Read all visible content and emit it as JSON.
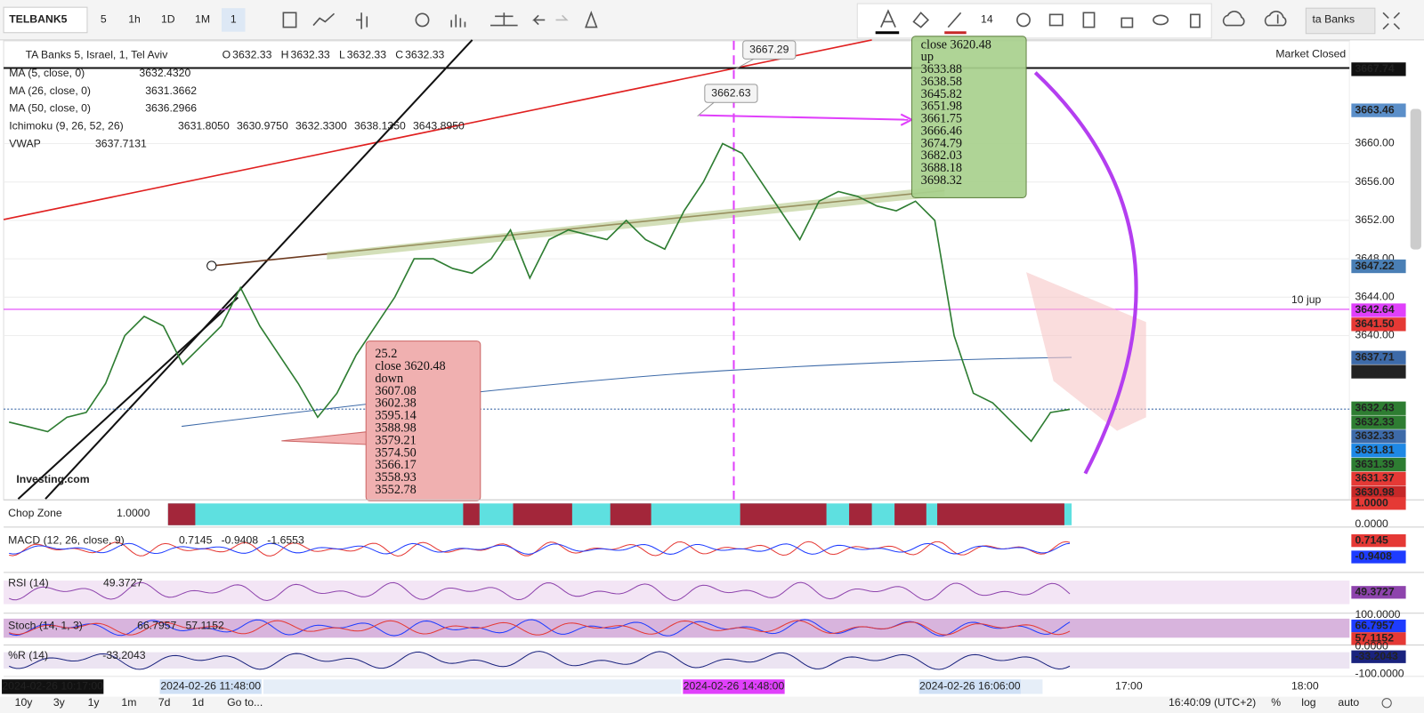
{
  "toolbar": {
    "symbol": "TELBANK5",
    "intervals": [
      "5",
      "1h",
      "1D",
      "1M",
      "1"
    ],
    "font_size": "14",
    "layout_name": "ta Banks"
  },
  "legend": {
    "title": "TA Banks 5, Israel, 1, Tel Aviv",
    "ohlc": [
      {
        "key": "O",
        "value": "3632.33"
      },
      {
        "key": "H",
        "value": "3632.33"
      },
      {
        "key": "L",
        "value": "3632.33"
      },
      {
        "key": "C",
        "value": "3632.33"
      }
    ],
    "status": "Market Closed",
    "indicators": [
      {
        "name": "MA (5, close, 0)",
        "values": [
          "3632.4320"
        ],
        "colors": [
          "#2e7d32"
        ]
      },
      {
        "name": "MA (26, close, 0)",
        "values": [
          "3631.3662"
        ],
        "colors": [
          "#d32f2f"
        ]
      },
      {
        "name": "MA (50, close, 0)",
        "values": [
          "3636.2966"
        ],
        "colors": [
          "#333333"
        ]
      },
      {
        "name": "Ichimoku (9, 26, 52, 26)",
        "values": [
          "3631.8050",
          "3630.9750",
          "3632.3300",
          "3638.1350",
          "3643.8950"
        ],
        "colors": [
          "#1e88e5",
          "#b71c1c",
          "#2e7d32",
          "#2e7d32",
          "#e53935"
        ]
      },
      {
        "name": "VWAP",
        "values": [
          "3637.7131"
        ],
        "colors": [
          "#1a3a8a"
        ]
      }
    ]
  },
  "chart": {
    "type": "line",
    "color": "#2e7d32",
    "ylim": [
      3622.9,
      3670.7
    ],
    "yticks": [
      {
        "value": 3640,
        "label": "3640.00"
      },
      {
        "value": 3644,
        "label": "3644.00"
      },
      {
        "value": 3648,
        "label": "3648.00"
      },
      {
        "value": 3652,
        "label": "3652.00"
      },
      {
        "value": 3656,
        "label": "3656.00"
      },
      {
        "value": 3660,
        "label": "3660.00"
      }
    ],
    "values": [
      3631,
      3630.5,
      3630,
      3631.5,
      3632,
      3635,
      3640,
      3642,
      3641,
      3637,
      3639,
      3641,
      3645,
      3641,
      3638,
      3635,
      3631.5,
      3634,
      3638,
      3641,
      3644,
      3648,
      3648,
      3647,
      3646.5,
      3648,
      3651,
      3646,
      3650,
      3651,
      3650.5,
      3650,
      3652,
      3650,
      3649,
      3653,
      3656,
      3660,
      3659,
      3656,
      3653,
      3650,
      3654,
      3655,
      3654.5,
      3653.5,
      3653,
      3654,
      3652,
      3640,
      3634,
      3633,
      3631,
      3629,
      3632,
      3632.33
    ],
    "price_labels": [
      {
        "value": 3667.74,
        "label": "3667.74",
        "color": "#111111"
      },
      {
        "value": 3663.46,
        "label": "3663.46",
        "color": "#5b8fc9"
      },
      {
        "value": 3647.22,
        "label": "3647.22",
        "color": "#4a7fb5"
      },
      {
        "value": 3642.64,
        "label": "3642.64",
        "color": "#e040fb"
      },
      {
        "value": 3641.5,
        "label": "3641.50",
        "color": "#e53935"
      },
      {
        "value": 3637.71,
        "label": "3637.71",
        "color": "#3d6aa8"
      },
      {
        "value": 3636.3,
        "label": "3636.30",
        "color": "#222222"
      },
      {
        "value": 3632.43,
        "label": "3632.43",
        "color": "#2e7d32"
      },
      {
        "value": 3632.33,
        "label": "3632.33",
        "color": "#2e7d32"
      },
      {
        "value": 3632.33,
        "label": "3632.33",
        "color": "#3d6aa8"
      },
      {
        "value": 3631.81,
        "label": "3631.81",
        "color": "#1e88e5"
      },
      {
        "value": 3631.39,
        "label": "3631.39",
        "color": "#2e7d32"
      },
      {
        "value": 3631.37,
        "label": "3631.37",
        "color": "#e53935"
      },
      {
        "value": 3630.98,
        "label": "3630.98",
        "color": "#c62828"
      }
    ]
  },
  "time_labels": [
    {
      "label": "2024-02-26 10:17:00",
      "style": "dark"
    },
    {
      "label": "2024-02-26 11:48:00",
      "style": "blue"
    },
    {
      "label": "2024-02-26 14:48:00",
      "style": "magenta"
    },
    {
      "label": "2024-02-26 16:06:00",
      "style": "blue"
    },
    {
      "label": "17:00",
      "style": "plain"
    },
    {
      "label": "18:00",
      "style": "plain"
    }
  ],
  "annotations": {
    "green_box": [
      "close 3620.48",
      "up",
      "3633.88",
      "3638.58",
      "3645.82",
      "3651.98",
      "3661.75",
      "3666.46",
      "3674.79",
      "3682.03",
      "3688.18",
      "3698.32"
    ],
    "red_box": [
      "25.2",
      "close 3620.48",
      "down",
      "3607.08",
      "3602.38",
      "3595.14",
      "3588.98",
      "3579.21",
      "3574.50",
      "3566.17",
      "3558.93",
      "3552.78"
    ],
    "callouts": [
      "3667.29",
      "3662.63"
    ],
    "note": "10 jup"
  },
  "panes": [
    {
      "label": "Chop Zone",
      "values": [
        "1.0000"
      ],
      "axis": [
        {
          "label": "1.0000",
          "color": "#e53935"
        },
        {
          "label": "0.0000",
          "color": null
        }
      ]
    },
    {
      "label": "MACD (12, 26, close, 9)",
      "values": [
        "0.7145",
        "-0.9408",
        "-1.6553"
      ],
      "axis": [
        {
          "label": "0.7145",
          "color": "#e53935"
        },
        {
          "label": "-0.9408",
          "color": "#1e3cff"
        }
      ]
    },
    {
      "label": "RSI (14)",
      "values": [
        "49.3727"
      ],
      "axis": [
        {
          "label": "49.3727",
          "color": "#8e44ad"
        }
      ]
    },
    {
      "label": "Stoch (14, 1, 3)",
      "values": [
        "66.7957",
        "57.1152"
      ],
      "axis": [
        {
          "label": "100.0000",
          "color": null
        },
        {
          "label": "66.7957",
          "color": "#1e3cff"
        },
        {
          "label": "57.1152",
          "color": "#e53935"
        },
        {
          "label": "0.0000",
          "color": null
        }
      ]
    },
    {
      "label": "%R (14)",
      "values": [
        "-33.2043"
      ],
      "axis": [
        {
          "label": "-33.2043",
          "color": "#1a237e"
        },
        {
          "label": "-100.0000",
          "color": null
        }
      ]
    }
  ],
  "bottom_bar": {
    "ranges": [
      "10y",
      "3y",
      "1y",
      "1m",
      "7d",
      "1d"
    ],
    "goto": "Go to...",
    "clock": "16:40:09 (UTC+2)",
    "options": [
      "%",
      "log",
      "auto"
    ]
  },
  "watermark": "Investing.com"
}
